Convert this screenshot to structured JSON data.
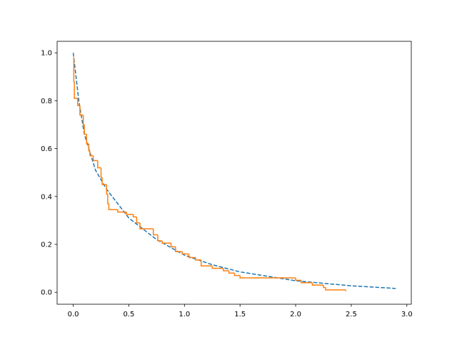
{
  "chart_data": {
    "type": "line",
    "xlim": [
      -0.145,
      3.04
    ],
    "ylim": [
      -0.05,
      1.048
    ],
    "xticks": [
      {
        "value": 0,
        "label": "0.0"
      },
      {
        "value": 0.5,
        "label": "0.5"
      },
      {
        "value": 1,
        "label": "1.0"
      },
      {
        "value": 1.5,
        "label": "1.5"
      },
      {
        "value": 2,
        "label": "2.0"
      },
      {
        "value": 2.5,
        "label": "2.5"
      },
      {
        "value": 3,
        "label": "3.0"
      }
    ],
    "yticks": [
      {
        "value": 0,
        "label": "0.0"
      },
      {
        "value": 0.2,
        "label": "0.2"
      },
      {
        "value": 0.4,
        "label": "0.4"
      },
      {
        "value": 0.6,
        "label": "0.6"
      },
      {
        "value": 0.8,
        "label": "0.8"
      },
      {
        "value": 1,
        "label": "1.0"
      }
    ],
    "grid": false,
    "series": [
      {
        "color": "#1f77b4",
        "style": "dashed",
        "x": [
          0,
          0.05,
          0.1,
          0.2,
          0.3,
          0.5,
          0.75,
          1.0,
          1.25,
          1.5,
          2.0,
          2.5,
          2.9
        ],
        "values": [
          1.0,
          0.8,
          0.66,
          0.51,
          0.43,
          0.31,
          0.22,
          0.155,
          0.115,
          0.085,
          0.048,
          0.027,
          0.016
        ]
      },
      {
        "color": "#ff7f0e",
        "style": "step",
        "x": [
          0,
          0.005,
          0.01,
          0.04,
          0.06,
          0.09,
          0.1,
          0.12,
          0.14,
          0.15,
          0.18,
          0.22,
          0.25,
          0.26,
          0.3,
          0.31,
          0.32,
          0.4,
          0.48,
          0.54,
          0.57,
          0.6,
          0.72,
          0.76,
          0.8,
          0.88,
          0.92,
          0.98,
          1.04,
          1.1,
          1.15,
          1.25,
          1.35,
          1.4,
          1.45,
          1.5,
          2.0,
          2.05,
          2.15,
          2.25,
          2.27,
          2.45
        ],
        "values": [
          0.98,
          0.88,
          0.81,
          0.78,
          0.74,
          0.7,
          0.66,
          0.62,
          0.59,
          0.57,
          0.55,
          0.52,
          0.48,
          0.45,
          0.41,
          0.37,
          0.345,
          0.335,
          0.325,
          0.315,
          0.29,
          0.265,
          0.24,
          0.215,
          0.205,
          0.19,
          0.17,
          0.16,
          0.145,
          0.135,
          0.11,
          0.1,
          0.09,
          0.08,
          0.07,
          0.06,
          0.05,
          0.04,
          0.03,
          0.02,
          0.01,
          0.005
        ]
      }
    ]
  }
}
